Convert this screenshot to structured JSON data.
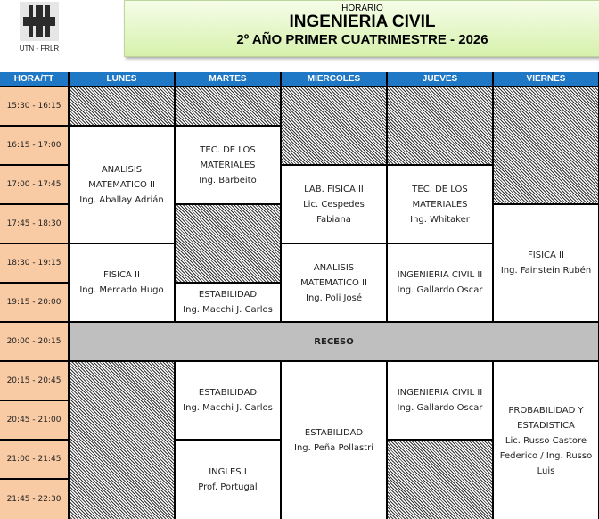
{
  "logo": {
    "text": "UTN - FRLR",
    "icon": "utn-logo"
  },
  "header": {
    "small": "HORARIO",
    "title": "INGENIERIA CIVIL",
    "subtitle": "2º AÑO PRIMER CUATRIMESTRE - 2026"
  },
  "colors": {
    "header_bg": "#1f78c6",
    "time_bg": "#f8cba4",
    "recess_bg": "#bfbfbf",
    "title_bg": "#d6f1ac"
  },
  "table": {
    "corner": "HORA/TT",
    "days": [
      "LUNES",
      "MARTES",
      "MIERCOLES",
      "JUEVES",
      "VIERNES"
    ],
    "times": [
      "15:30 - 16:15",
      "16:15 - 17:00",
      "17:00 - 17:45",
      "17:45 - 18:30",
      "18:30 - 19:15",
      "19:15 - 20:00",
      "20:00 - 20:15",
      "20:15 - 20:45",
      "20:45 - 21:00",
      "21:00 - 21:45",
      "21:45 - 22:30"
    ],
    "recess": {
      "label": "RECESO",
      "slot": "20:00 - 20:15"
    },
    "blocks": [
      {
        "day": "LUNES",
        "from": "15:30 - 16:15",
        "to": "15:30 - 16:15",
        "type": "free"
      },
      {
        "day": "LUNES",
        "from": "16:15 - 17:00",
        "to": "17:45 - 18:30",
        "type": "class",
        "lines": [
          "ANALISIS",
          "MATEMATICO II",
          "Ing. Aballay Adrián"
        ]
      },
      {
        "day": "LUNES",
        "from": "18:30 - 19:15",
        "to": "19:15 - 20:00",
        "type": "class",
        "lines": [
          "FISICA II",
          "Ing. Mercado Hugo"
        ]
      },
      {
        "day": "LUNES",
        "from": "20:15 - 20:45",
        "to": "21:45 - 22:30",
        "type": "free"
      },
      {
        "day": "MARTES",
        "from": "15:30 - 16:15",
        "to": "15:30 - 16:15",
        "type": "free"
      },
      {
        "day": "MARTES",
        "from": "16:15 - 17:00",
        "to": "17:00 - 17:45",
        "type": "class",
        "lines": [
          "TEC. DE LOS",
          "MATERIALES",
          "Ing.  Barbeito"
        ]
      },
      {
        "day": "MARTES",
        "from": "17:45 - 18:30",
        "to": "18:30 - 19:15",
        "type": "free"
      },
      {
        "day": "MARTES",
        "from": "19:15 - 20:00",
        "to": "19:15 - 20:00",
        "type": "class",
        "lines": [
          "ESTABILIDAD",
          "Ing. Macchi J. Carlos"
        ]
      },
      {
        "day": "MARTES",
        "from": "20:15 - 20:45",
        "to": "20:45 - 21:00",
        "type": "class",
        "lines": [
          "ESTABILIDAD",
          "Ing. Macchi J. Carlos"
        ]
      },
      {
        "day": "MARTES",
        "from": "21:00 - 21:45",
        "to": "21:45 - 22:30",
        "type": "class",
        "lines": [
          "INGLES I",
          "Prof. Portugal"
        ]
      },
      {
        "day": "MIERCOLES",
        "from": "15:30 - 16:15",
        "to": "16:15 - 17:00",
        "type": "free"
      },
      {
        "day": "MIERCOLES",
        "from": "17:00 - 17:45",
        "to": "17:45 - 18:30",
        "type": "class",
        "lines": [
          "LAB. FISICA II",
          "Lic. Cespedes",
          "Fabiana"
        ]
      },
      {
        "day": "MIERCOLES",
        "from": "18:30 - 19:15",
        "to": "19:15 - 20:00",
        "type": "class",
        "lines": [
          "ANALISIS",
          "MATEMATICO II",
          "Ing. Poli José"
        ]
      },
      {
        "day": "MIERCOLES",
        "from": "20:15 - 20:45",
        "to": "21:45 - 22:30",
        "type": "class",
        "lines": [
          "ESTABILIDAD",
          "Ing. Peña Pollastri"
        ]
      },
      {
        "day": "JUEVES",
        "from": "15:30 - 16:15",
        "to": "16:15 - 17:00",
        "type": "free"
      },
      {
        "day": "JUEVES",
        "from": "17:00 - 17:45",
        "to": "17:45 - 18:30",
        "type": "class",
        "lines": [
          "TEC. DE LOS",
          "MATERIALES",
          "Ing. Whitaker"
        ]
      },
      {
        "day": "JUEVES",
        "from": "18:30 - 19:15",
        "to": "19:15 - 20:00",
        "type": "class",
        "lines": [
          "INGENIERIA CIVIL II",
          "Ing. Gallardo Oscar"
        ]
      },
      {
        "day": "JUEVES",
        "from": "20:15 - 20:45",
        "to": "20:45 - 21:00",
        "type": "class",
        "lines": [
          "INGENIERIA CIVIL II",
          "Ing. Gallardo Oscar"
        ]
      },
      {
        "day": "JUEVES",
        "from": "21:00 - 21:45",
        "to": "21:45 - 22:30",
        "type": "free"
      },
      {
        "day": "VIERNES",
        "from": "15:30 - 16:15",
        "to": "17:00 - 17:45",
        "type": "free"
      },
      {
        "day": "VIERNES",
        "from": "17:45 - 18:30",
        "to": "19:15 - 20:00",
        "type": "class",
        "lines": [
          "FISICA II",
          "Ing. Fainstein Rubén"
        ]
      },
      {
        "day": "VIERNES",
        "from": "20:15 - 20:45",
        "to": "21:45 - 22:30",
        "type": "class",
        "lines": [
          "PROBABILIDAD Y",
          "ESTADISTICA",
          "Lic. Russo Castore",
          "Federico / Ing. Russo",
          "Luis"
        ]
      }
    ]
  }
}
